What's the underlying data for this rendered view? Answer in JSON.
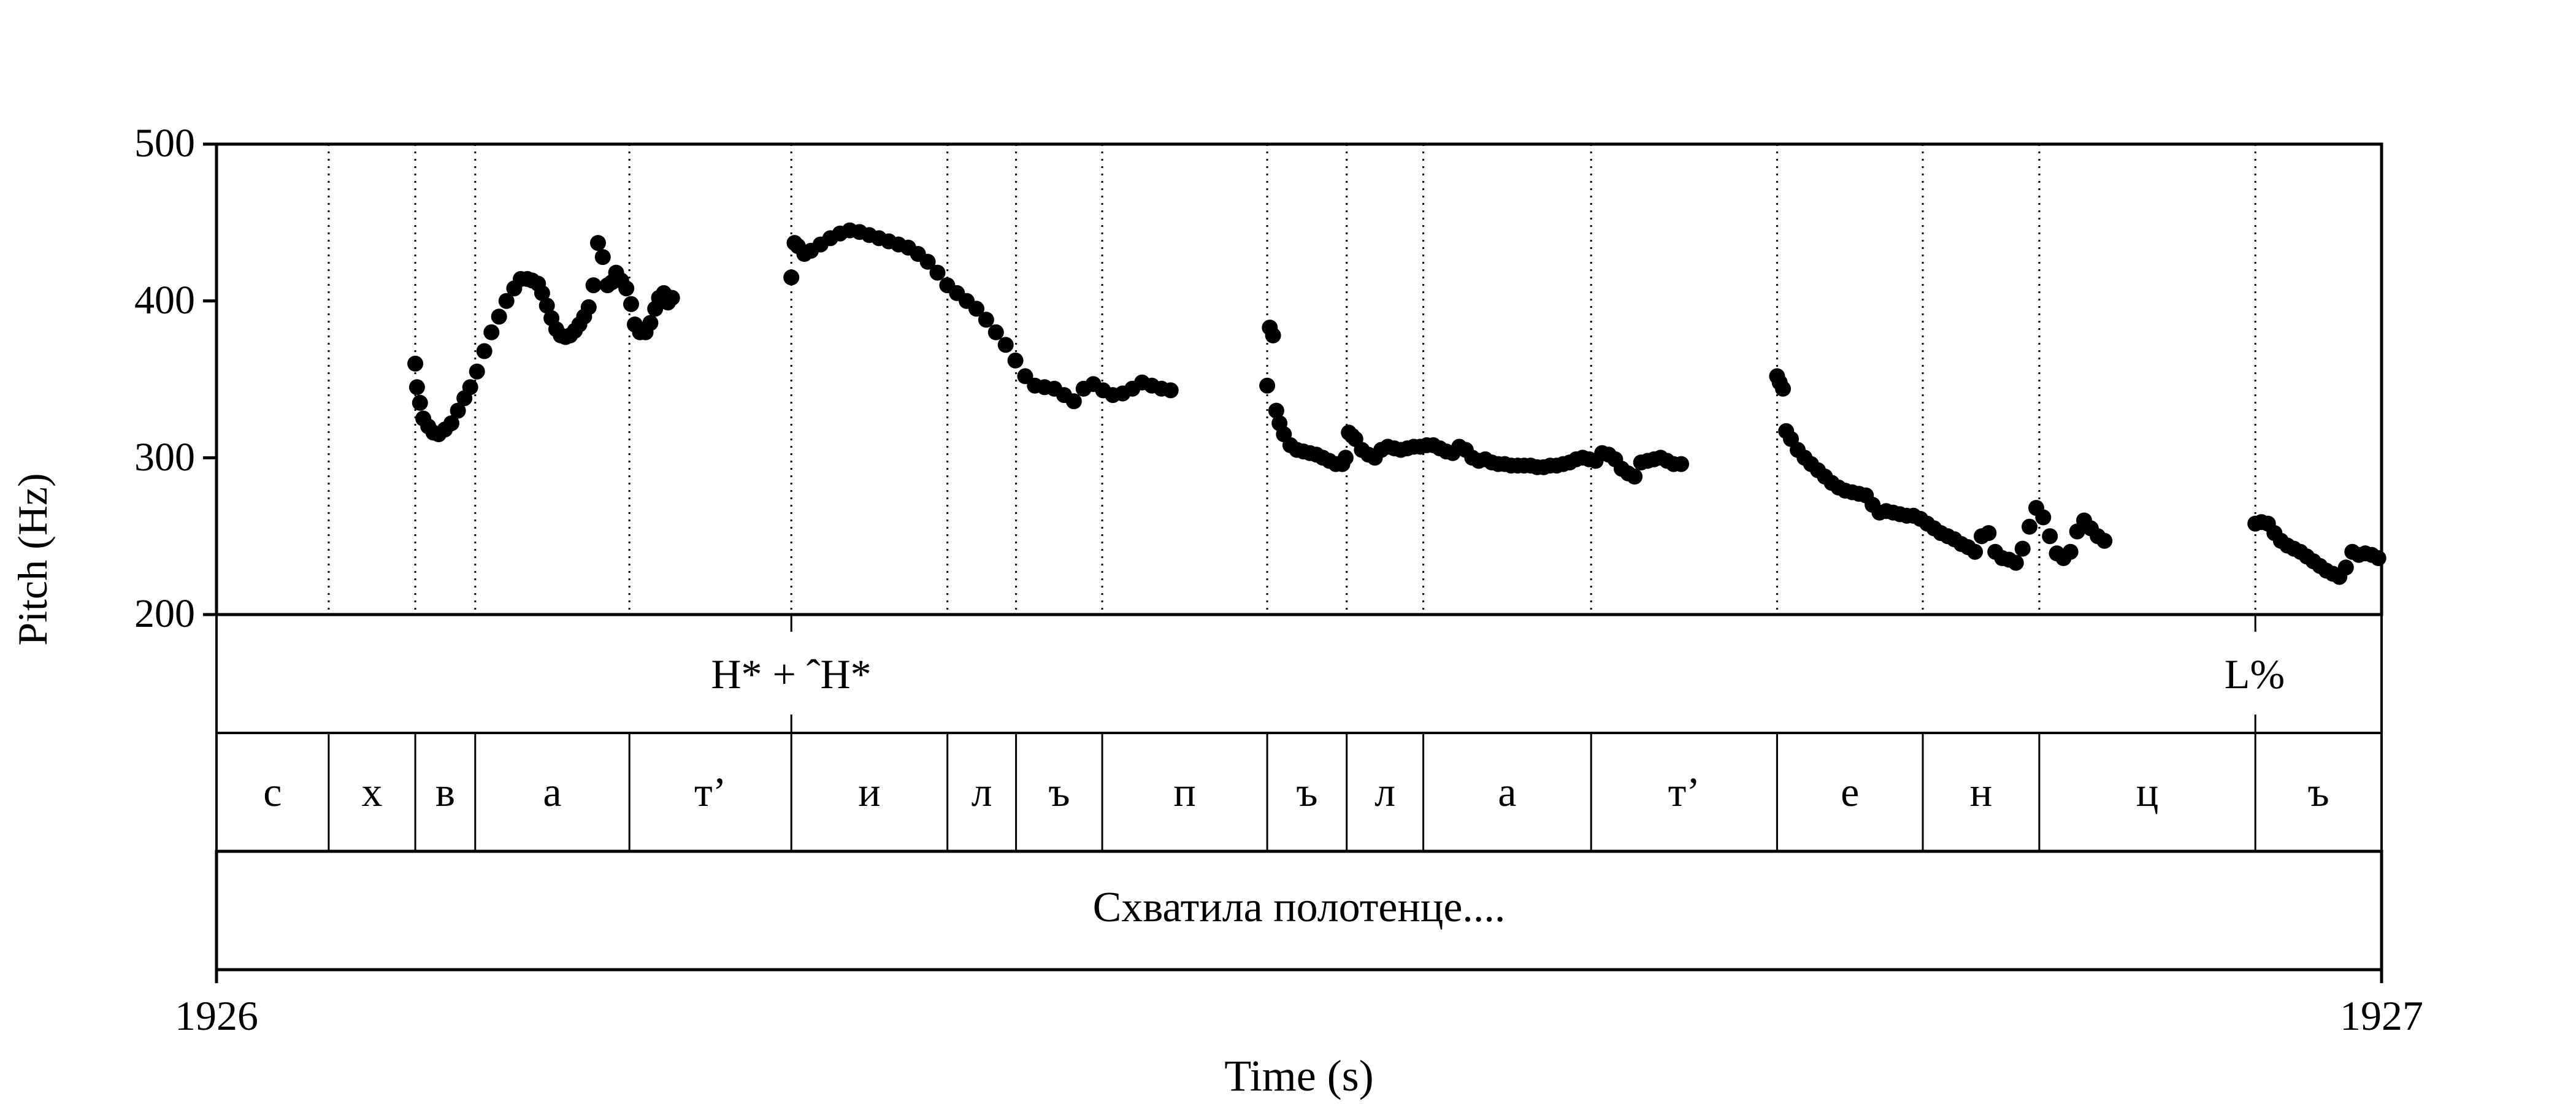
{
  "chart_data": {
    "type": "scatter",
    "title": "",
    "xlabel": "Time (s)",
    "ylabel": "Pitch (Hz)",
    "xlim": [
      1926,
      1927
    ],
    "ylim": [
      200,
      500
    ],
    "x_tick_labels": [
      "1926",
      "1927"
    ],
    "y_ticks": [
      200,
      300,
      400,
      500
    ],
    "y_tick_labels": [
      "200",
      "300",
      "400",
      "500"
    ],
    "grid": "dotted vertical lines at segment boundaries",
    "marker_color": "#000000",
    "boundaries": [
      1926.0,
      1926.0518,
      1926.0918,
      1926.1195,
      1926.1907,
      1926.2655,
      1926.3376,
      1926.3693,
      1926.4091,
      1926.4853,
      1926.522,
      1926.5574,
      1926.6349,
      1926.7208,
      1926.7881,
      1926.8419,
      1926.9417,
      1927.0
    ],
    "segments": [
      "с",
      "х",
      "в",
      "а",
      "т’",
      "и",
      "л",
      "ъ",
      "п",
      "ъ",
      "л",
      "а",
      "т’",
      "е",
      "н",
      "ц",
      "ъ"
    ],
    "tones": [
      {
        "label": "H* + ˆH*",
        "time": 1926.2655
      },
      {
        "label": "L%",
        "time": 1926.9417
      }
    ],
    "words": "Схватила полотенце....",
    "pitch_contours": [
      {
        "x": [
          1926.0918,
          1926.0926,
          1926.094,
          1926.0955,
          1926.0978,
          1926.1002,
          1926.1026,
          1926.1055,
          1926.1085,
          1926.1115,
          1926.1145,
          1926.1172,
          1926.1203,
          1926.1237,
          1926.127,
          1926.1305,
          1926.1339,
          1926.1375,
          1926.1405,
          1926.1436,
          1926.1458,
          1926.1485,
          1926.1504,
          1926.1526,
          1926.1547,
          1926.1569,
          1926.159,
          1926.1612,
          1926.1633,
          1926.1655,
          1926.1676,
          1926.1698,
          1926.1719,
          1926.1741,
          1926.1762,
          1926.1784,
          1926.1806,
          1926.1827,
          1926.1846,
          1926.1869,
          1926.1893,
          1926.1915,
          1926.1932,
          1926.1956,
          1926.1982,
          1926.2004,
          1926.2026,
          1926.2044,
          1926.2066,
          1926.2085,
          1926.2104
        ],
        "y": [
          360,
          345,
          335,
          325,
          320,
          316,
          315,
          318,
          322,
          330,
          338,
          345,
          355,
          368,
          380,
          390,
          400,
          408,
          414,
          414,
          413,
          411,
          405,
          397,
          389,
          382,
          378,
          377,
          378,
          381,
          385,
          390,
          396,
          410,
          437,
          428,
          410,
          412,
          418,
          413,
          408,
          398,
          385,
          380,
          380,
          386,
          395,
          402,
          405,
          399,
          402
        ]
      },
      {
        "x": [
          1926.2655,
          1926.267,
          1926.2685,
          1926.2715,
          1926.2745,
          1926.279,
          1926.2835,
          1926.288,
          1926.2925,
          1926.297,
          1926.3015,
          1926.306,
          1926.3105,
          1926.315,
          1926.3195,
          1926.324,
          1926.3285,
          1926.333,
          1926.3375,
          1926.342,
          1926.3465,
          1926.351,
          1926.3555,
          1926.36,
          1926.3645,
          1926.369,
          1926.3735,
          1926.378,
          1926.3825,
          1926.387,
          1926.3915,
          1926.396,
          1926.4005,
          1926.405,
          1926.4095,
          1926.414,
          1926.4185,
          1926.423,
          1926.4275,
          1926.432,
          1926.4365,
          1926.4407
        ],
        "y": [
          415,
          437,
          435,
          430,
          432,
          436,
          440,
          443,
          445,
          444,
          442,
          440,
          438,
          436,
          434,
          430,
          425,
          418,
          410,
          405,
          400,
          395,
          388,
          380,
          372,
          362,
          352,
          346,
          345,
          344,
          340,
          336,
          344,
          347,
          343,
          340,
          341,
          344,
          348,
          346,
          344,
          343
        ]
      },
      {
        "x": [
          1926.4853,
          1926.4865,
          1926.488,
          1926.4895,
          1926.491,
          1926.493,
          1926.496,
          1926.499,
          1926.502,
          1926.505,
          1926.508,
          1926.511,
          1926.514,
          1926.517,
          1926.52,
          1926.5215,
          1926.523,
          1926.5245,
          1926.526,
          1926.529,
          1926.532,
          1926.535,
          1926.538,
          1926.541,
          1926.544,
          1926.547,
          1926.55,
          1926.553,
          1926.556,
          1926.559,
          1926.562,
          1926.565,
          1926.568,
          1926.571,
          1926.574,
          1926.577,
          1926.58,
          1926.583,
          1926.586,
          1926.589,
          1926.592,
          1926.595,
          1926.598,
          1926.601,
          1926.604,
          1926.607,
          1926.61,
          1926.613,
          1926.616,
          1926.619,
          1926.622,
          1926.625,
          1926.628,
          1926.631,
          1926.634,
          1926.637,
          1926.64,
          1926.643,
          1926.646,
          1926.649,
          1926.652,
          1926.655,
          1926.658,
          1926.661,
          1926.664,
          1926.667,
          1926.67,
          1926.673,
          1926.6765
        ],
        "y": [
          346,
          383,
          378,
          330,
          322,
          315,
          308,
          305,
          304,
          303,
          302,
          300,
          298,
          296,
          296,
          300,
          316,
          314,
          312,
          305,
          302,
          300,
          305,
          307,
          306,
          305,
          306,
          307,
          307,
          308,
          308,
          306,
          304,
          303,
          307,
          305,
          300,
          298,
          299,
          297,
          296,
          296,
          295,
          295,
          295,
          295,
          294,
          294,
          295,
          295,
          296,
          297,
          299,
          300,
          299,
          298,
          303,
          302,
          299,
          293,
          290,
          288,
          297,
          298,
          299,
          300,
          298,
          296,
          296
        ]
      },
      {
        "x": [
          1926.7208,
          1926.722,
          1926.7235,
          1926.725,
          1926.7272,
          1926.7303,
          1926.7335,
          1926.7365,
          1926.7397,
          1926.7429,
          1926.746,
          1926.7492,
          1926.7523,
          1926.7555,
          1926.7586,
          1926.7618,
          1926.7649,
          1926.7681,
          1926.7712,
          1926.7744,
          1926.7775,
          1926.7807,
          1926.7838,
          1926.787,
          1926.7901,
          1926.7933,
          1926.7964,
          1926.7996,
          1926.8027,
          1926.8059,
          1926.809,
          1926.8122,
          1926.8153,
          1926.8185,
          1926.8216,
          1926.8248,
          1926.8279,
          1926.8311,
          1926.8342,
          1926.8374,
          1926.8405,
          1926.8437,
          1926.8468,
          1926.85,
          1926.8531,
          1926.8563,
          1926.8594,
          1926.8626,
          1926.8657,
          1926.8689,
          1926.872
        ],
        "y": [
          352,
          348,
          344,
          317,
          312,
          305,
          300,
          296,
          292,
          288,
          284,
          281,
          279,
          278,
          277,
          276,
          270,
          265,
          266,
          265,
          264,
          263,
          263,
          261,
          258,
          255,
          252,
          250,
          248,
          245,
          243,
          240,
          250,
          252,
          240,
          236,
          235,
          233,
          242,
          256,
          268,
          262,
          250,
          239,
          236,
          240,
          253,
          260,
          255,
          250,
          247
        ]
      },
      {
        "x": [
          1926.9417,
          1926.9445,
          1926.9475,
          1926.9505,
          1926.9535,
          1926.9565,
          1926.9595,
          1926.9625,
          1926.9655,
          1926.9685,
          1926.9715,
          1926.9745,
          1926.9775,
          1926.9805,
          1926.9835,
          1926.9865,
          1926.9895,
          1926.9925,
          1926.9955,
          1926.9985
        ],
        "y": [
          258,
          259,
          258,
          252,
          247,
          244,
          242,
          240,
          237,
          234,
          231,
          228,
          226,
          224,
          230,
          240,
          238,
          239,
          238,
          236
        ]
      }
    ]
  }
}
